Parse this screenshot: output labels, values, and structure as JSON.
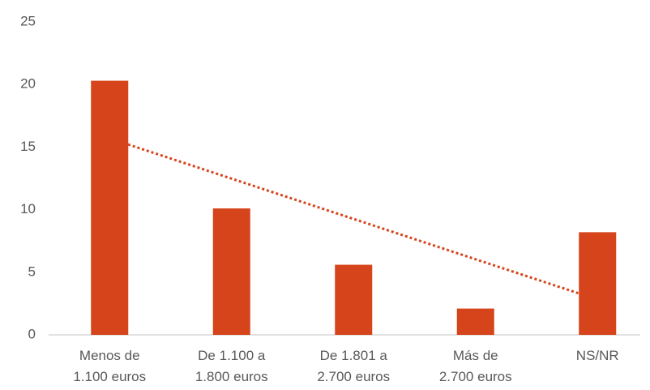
{
  "chart_data": {
    "type": "bar",
    "categories": [
      "Menos de\n1.100 euros",
      "De 1.100 a\n1.800 euros",
      "De 1.801 a\n2.700 euros",
      "Más de\n2.700 euros",
      "NS/NR"
    ],
    "values": [
      20.3,
      10.1,
      5.6,
      2.1,
      8.2
    ],
    "color": "#d5441b",
    "trendline": "linear",
    "trendline_color": "#d5441b",
    "ylim": [
      0,
      25
    ],
    "yticks": [
      0,
      5,
      10,
      15,
      20,
      25
    ],
    "grid": false
  }
}
